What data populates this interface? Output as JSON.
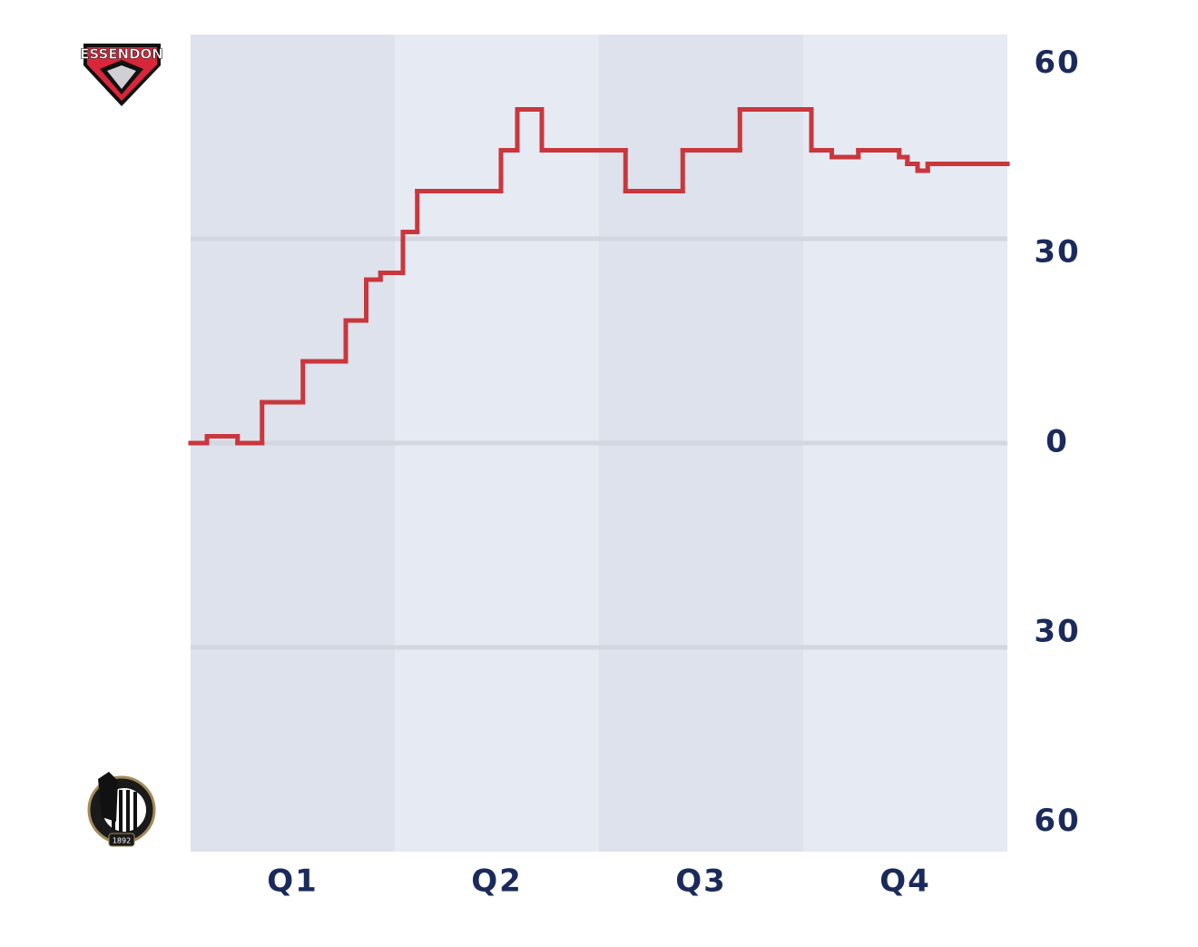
{
  "chart_data": {
    "type": "step-line",
    "logo_text": [
      "ESSENDON",
      "1892"
    ],
    "categories": [
      "Q1",
      "Q2",
      "Q3",
      "Q4"
    ],
    "x": [
      0,
      0.08,
      0.23,
      0.35,
      0.55,
      0.76,
      0.86,
      0.93,
      1.04,
      1.11,
      1.52,
      1.6,
      1.72,
      2.13,
      2.41,
      2.69,
      3.04,
      3.14,
      3.27,
      3.47,
      3.51,
      3.56,
      3.61
    ],
    "series": [
      {
        "color": "#c9373d",
        "values": [
          0,
          1,
          0,
          6,
          12,
          18,
          24,
          25,
          31,
          37,
          43,
          49,
          43,
          37,
          43,
          49,
          43,
          42,
          43,
          42,
          41,
          40,
          41
        ]
      }
    ],
    "xlim": [
      0,
      4
    ],
    "ylim": [
      -60,
      60
    ],
    "yticks": [
      60,
      30,
      0,
      {
        "value": -30,
        "label": "30"
      },
      {
        "value": -60,
        "label": "60"
      }
    ],
    "grid": true,
    "band_colors": [
      "#dde2ec",
      "#e5eaf3"
    ]
  }
}
